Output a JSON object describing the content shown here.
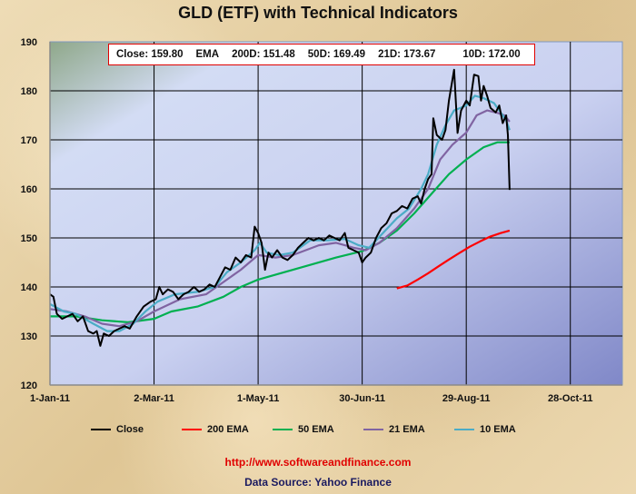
{
  "chart_data": {
    "type": "line",
    "title": "GLD (ETF)  with Technical Indicators",
    "info_box": {
      "close": "Close: 159.80",
      "ema": "EMA",
      "d200": "200D: 151.48",
      "d50": "50D: 169.49",
      "d21": "21D: 173.67",
      "d10": "10D: 172.00"
    },
    "xlabel": "",
    "ylabel": "",
    "x_unit": "days since 1-Jan-11",
    "xlim": [
      0,
      330
    ],
    "ylim": [
      120,
      190
    ],
    "y_ticks": [
      120,
      130,
      140,
      150,
      160,
      170,
      180,
      190
    ],
    "x_ticks": [
      {
        "day": 0,
        "label": "1-Jan-11"
      },
      {
        "day": 60,
        "label": "2-Mar-11"
      },
      {
        "day": 120,
        "label": "1-May-11"
      },
      {
        "day": 180,
        "label": "30-Jun-11"
      },
      {
        "day": 240,
        "label": "29-Aug-11"
      },
      {
        "day": 300,
        "label": "28-Oct-11"
      }
    ],
    "grid": true,
    "legend_position": "bottom",
    "series": [
      {
        "name": "Close",
        "color": "#000000",
        "points": [
          [
            0,
            138.5
          ],
          [
            2,
            138
          ],
          [
            4,
            134.5
          ],
          [
            7,
            133.5
          ],
          [
            10,
            134
          ],
          [
            13,
            134.5
          ],
          [
            16,
            133
          ],
          [
            19,
            134
          ],
          [
            22,
            131
          ],
          [
            25,
            130.5
          ],
          [
            27,
            131
          ],
          [
            29,
            128
          ],
          [
            31,
            130.5
          ],
          [
            34,
            130
          ],
          [
            37,
            131
          ],
          [
            40,
            131.5
          ],
          [
            43,
            132
          ],
          [
            46,
            131.5
          ],
          [
            50,
            134
          ],
          [
            54,
            136
          ],
          [
            58,
            137
          ],
          [
            61,
            137.5
          ],
          [
            63,
            140
          ],
          [
            65,
            138.5
          ],
          [
            68,
            139.5
          ],
          [
            71,
            139
          ],
          [
            74,
            137.5
          ],
          [
            77,
            138.5
          ],
          [
            80,
            139
          ],
          [
            83,
            140
          ],
          [
            86,
            139
          ],
          [
            89,
            139.5
          ],
          [
            92,
            140.5
          ],
          [
            95,
            140
          ],
          [
            98,
            142
          ],
          [
            101,
            144
          ],
          [
            104,
            143.5
          ],
          [
            107,
            146
          ],
          [
            110,
            145
          ],
          [
            113,
            146.5
          ],
          [
            116,
            146
          ],
          [
            118,
            152.3
          ],
          [
            120,
            151
          ],
          [
            122,
            149
          ],
          [
            124,
            143.5
          ],
          [
            126,
            147
          ],
          [
            128,
            146
          ],
          [
            131,
            147.5
          ],
          [
            134,
            146
          ],
          [
            137,
            145.5
          ],
          [
            140,
            146.5
          ],
          [
            143,
            148
          ],
          [
            146,
            149
          ],
          [
            149,
            150
          ],
          [
            152,
            149.5
          ],
          [
            155,
            150
          ],
          [
            158,
            149.5
          ],
          [
            161,
            150.5
          ],
          [
            164,
            150
          ],
          [
            167,
            149.5
          ],
          [
            170,
            151
          ],
          [
            172,
            148
          ],
          [
            175,
            147.5
          ],
          [
            178,
            147
          ],
          [
            180,
            145
          ],
          [
            182,
            146
          ],
          [
            185,
            147
          ],
          [
            188,
            150
          ],
          [
            191,
            152
          ],
          [
            194,
            153
          ],
          [
            197,
            155
          ],
          [
            200,
            155.5
          ],
          [
            203,
            156.5
          ],
          [
            206,
            156
          ],
          [
            209,
            158
          ],
          [
            212,
            158.5
          ],
          [
            214,
            157
          ],
          [
            216,
            160
          ],
          [
            218,
            162
          ],
          [
            220,
            163
          ],
          [
            221,
            174.4
          ],
          [
            223,
            171
          ],
          [
            226,
            170
          ],
          [
            228,
            172
          ],
          [
            230,
            178
          ],
          [
            233,
            184.3
          ],
          [
            235,
            171.4
          ],
          [
            237,
            176
          ],
          [
            240,
            178
          ],
          [
            242,
            177
          ],
          [
            244.5,
            183.3
          ],
          [
            247,
            183
          ],
          [
            248.5,
            178
          ],
          [
            250,
            181
          ],
          [
            252,
            179
          ],
          [
            254,
            176.5
          ],
          [
            257,
            175.6
          ],
          [
            259,
            177
          ],
          [
            261,
            173.4
          ],
          [
            263,
            175
          ],
          [
            264,
            171
          ],
          [
            265,
            159.8
          ]
        ]
      },
      {
        "name": "200 EMA",
        "color": "#ff0000",
        "points": [
          [
            200,
            139.7
          ],
          [
            206,
            140.3
          ],
          [
            212,
            141.5
          ],
          [
            218,
            142.8
          ],
          [
            224,
            144.2
          ],
          [
            230,
            145.6
          ],
          [
            236,
            146.9
          ],
          [
            242,
            148.2
          ],
          [
            248,
            149.3
          ],
          [
            254,
            150.3
          ],
          [
            260,
            151
          ],
          [
            265,
            151.5
          ]
        ]
      },
      {
        "name": "50 EMA",
        "color": "#00b050",
        "points": [
          [
            0,
            134
          ],
          [
            15,
            134
          ],
          [
            30,
            133.2
          ],
          [
            45,
            132.8
          ],
          [
            60,
            133.5
          ],
          [
            70,
            135
          ],
          [
            85,
            136
          ],
          [
            100,
            138
          ],
          [
            110,
            140
          ],
          [
            120,
            141.5
          ],
          [
            135,
            143
          ],
          [
            150,
            144.5
          ],
          [
            165,
            146
          ],
          [
            180,
            147.3
          ],
          [
            190,
            149
          ],
          [
            200,
            151.5
          ],
          [
            210,
            155
          ],
          [
            220,
            159
          ],
          [
            230,
            163
          ],
          [
            240,
            166
          ],
          [
            250,
            168.5
          ],
          [
            258,
            169.5
          ],
          [
            265,
            169.5
          ]
        ]
      },
      {
        "name": "21 EMA",
        "color": "#8064a2",
        "points": [
          [
            0,
            135.5
          ],
          [
            10,
            135
          ],
          [
            20,
            134
          ],
          [
            30,
            132.5
          ],
          [
            40,
            132
          ],
          [
            50,
            133
          ],
          [
            60,
            135
          ],
          [
            75,
            137.5
          ],
          [
            90,
            138.5
          ],
          [
            100,
            141
          ],
          [
            110,
            143.5
          ],
          [
            120,
            146.5
          ],
          [
            130,
            146
          ],
          [
            140,
            146.5
          ],
          [
            155,
            148.5
          ],
          [
            165,
            149
          ],
          [
            175,
            148
          ],
          [
            182,
            147.5
          ],
          [
            190,
            149
          ],
          [
            200,
            152
          ],
          [
            210,
            156
          ],
          [
            218,
            160
          ],
          [
            225,
            166
          ],
          [
            232,
            169
          ],
          [
            240,
            171.5
          ],
          [
            246,
            175
          ],
          [
            252,
            176
          ],
          [
            258,
            175.5
          ],
          [
            262,
            175
          ],
          [
            265,
            173.7
          ]
        ]
      },
      {
        "name": "10 EMA",
        "color": "#4bacc6",
        "points": [
          [
            0,
            136.5
          ],
          [
            8,
            135
          ],
          [
            15,
            134.5
          ],
          [
            25,
            132.5
          ],
          [
            33,
            131
          ],
          [
            40,
            131
          ],
          [
            48,
            132.5
          ],
          [
            55,
            135
          ],
          [
            62,
            137
          ],
          [
            72,
            138.5
          ],
          [
            85,
            139
          ],
          [
            95,
            140
          ],
          [
            102,
            143
          ],
          [
            110,
            145
          ],
          [
            118,
            147.5
          ],
          [
            121,
            149
          ],
          [
            125,
            147
          ],
          [
            132,
            146.5
          ],
          [
            140,
            147
          ],
          [
            150,
            149.5
          ],
          [
            160,
            149.5
          ],
          [
            170,
            149.8
          ],
          [
            178,
            148.5
          ],
          [
            184,
            148
          ],
          [
            192,
            151
          ],
          [
            200,
            154
          ],
          [
            207,
            156
          ],
          [
            214,
            160
          ],
          [
            218,
            163
          ],
          [
            223,
            169
          ],
          [
            228,
            173
          ],
          [
            233,
            176
          ],
          [
            240,
            177
          ],
          [
            245,
            179
          ],
          [
            250,
            178.5
          ],
          [
            256,
            177.5
          ],
          [
            261,
            175
          ],
          [
            263,
            174
          ],
          [
            265,
            172
          ]
        ]
      }
    ]
  },
  "footer": {
    "url": "http://www.softwareandfinance.com",
    "source": "Data Source: Yahoo Finance"
  }
}
